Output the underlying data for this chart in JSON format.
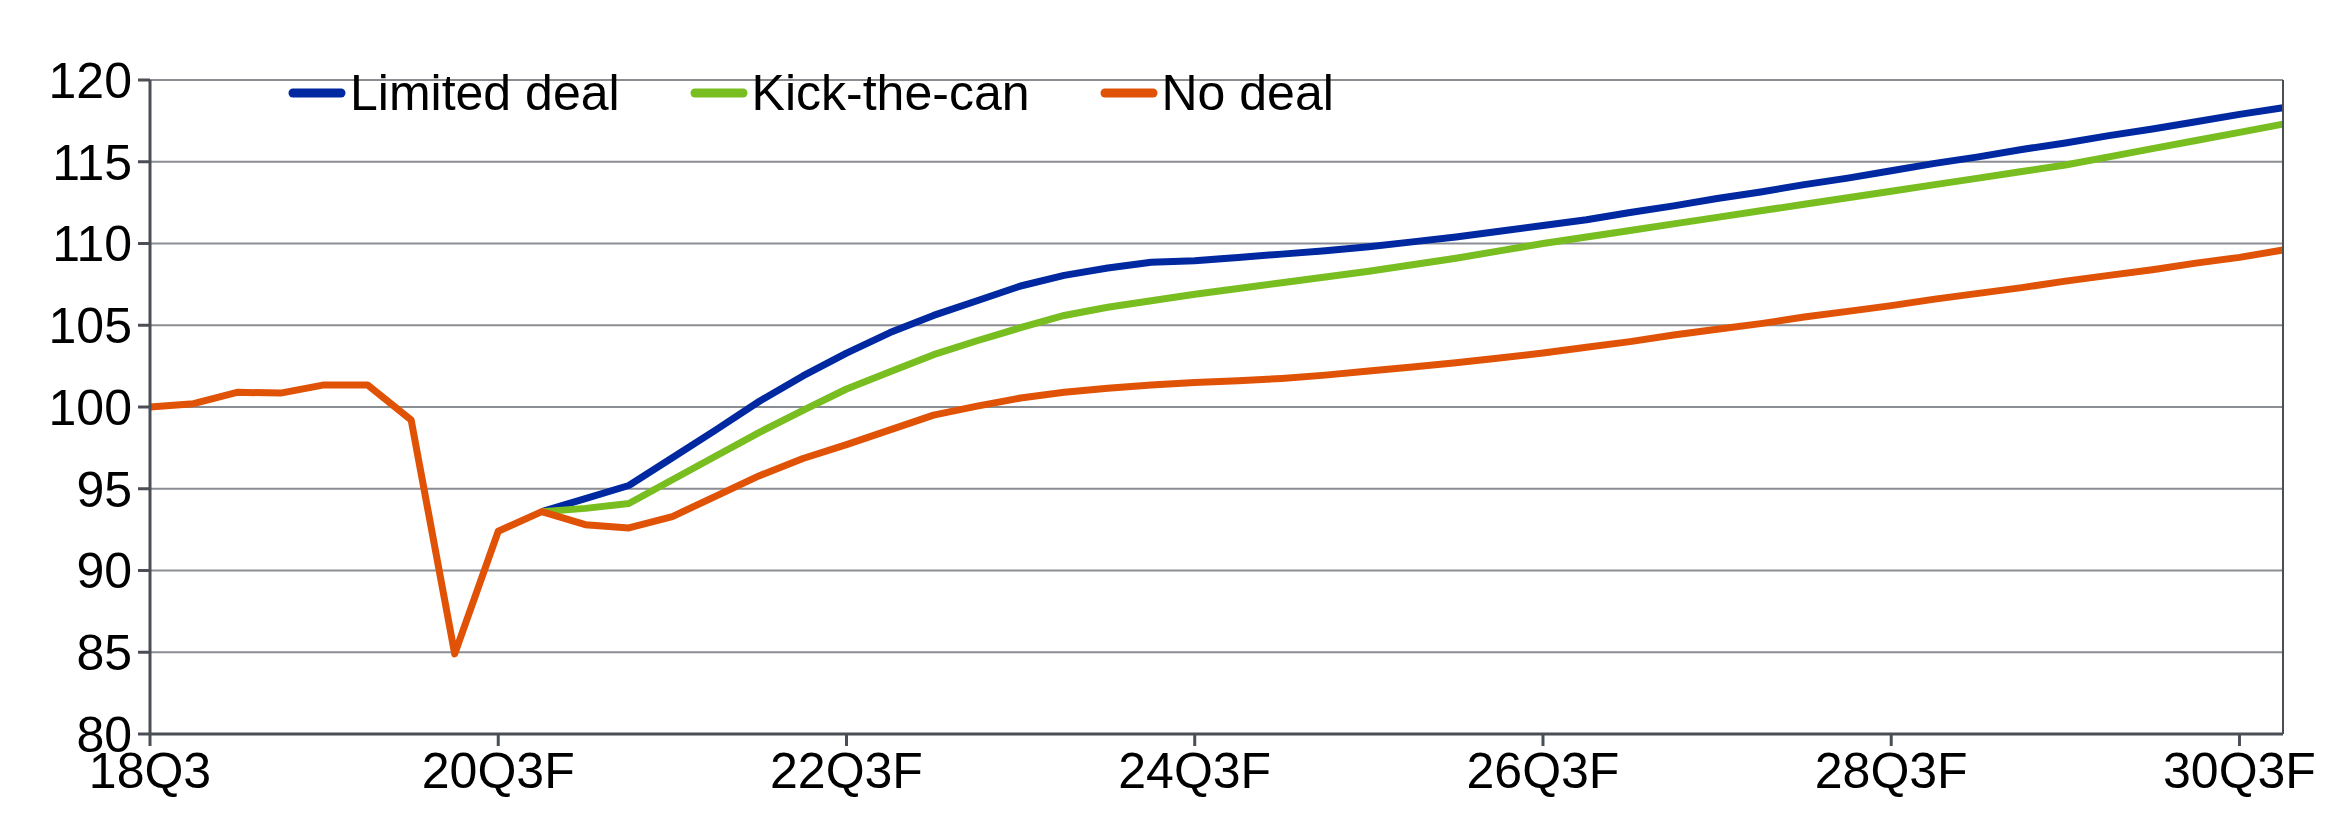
{
  "chart_data": {
    "type": "line",
    "categories": [
      "18Q3",
      null,
      null,
      null,
      null,
      null,
      null,
      null,
      "20Q3F",
      null,
      null,
      null,
      null,
      null,
      null,
      null,
      "22Q3F",
      null,
      null,
      null,
      null,
      null,
      null,
      null,
      "24Q3F",
      null,
      null,
      null,
      null,
      null,
      null,
      null,
      "26Q3F",
      null,
      null,
      null,
      null,
      null,
      null,
      null,
      "28Q3F",
      null,
      null,
      null,
      null,
      null,
      null,
      null,
      "30Q3F",
      null
    ],
    "series": [
      {
        "name": "Limited deal",
        "color": "#0028a0",
        "values": [
          null,
          null,
          null,
          null,
          null,
          null,
          null,
          null,
          null,
          93.6,
          94.4,
          95.2,
          96.9,
          98.6,
          100.35,
          101.9,
          103.3,
          104.55,
          105.6,
          106.5,
          107.4,
          108.05,
          108.5,
          108.85,
          108.95,
          109.15,
          109.35,
          109.55,
          109.8,
          110.1,
          110.4,
          110.75,
          111.1,
          111.45,
          111.9,
          112.3,
          112.75,
          113.15,
          113.6,
          114.0,
          114.45,
          114.9,
          115.3,
          115.75,
          116.15,
          116.6,
          117.0,
          117.45,
          117.9,
          118.3
        ]
      },
      {
        "name": "Kick-the-can",
        "color": "#78be20",
        "values": [
          null,
          null,
          null,
          null,
          null,
          null,
          null,
          null,
          null,
          93.6,
          93.8,
          94.1,
          95.55,
          97.0,
          98.45,
          99.8,
          101.1,
          102.15,
          103.2,
          104.05,
          104.85,
          105.6,
          106.1,
          106.5,
          106.9,
          107.25,
          107.6,
          107.95,
          108.3,
          108.7,
          109.1,
          109.55,
          110.0,
          110.4,
          110.8,
          111.2,
          111.6,
          112.0,
          112.4,
          112.8,
          113.2,
          113.6,
          114.0,
          114.4,
          114.8,
          115.3,
          115.8,
          116.3,
          116.8,
          117.3
        ]
      },
      {
        "name": "No deal",
        "color": "#e05206",
        "values": [
          100.0,
          100.2,
          100.9,
          100.85,
          101.35,
          101.35,
          99.2,
          84.9,
          92.4,
          93.6,
          92.8,
          92.6,
          93.3,
          94.55,
          95.8,
          96.85,
          97.7,
          98.6,
          99.5,
          100.05,
          100.55,
          100.9,
          101.15,
          101.35,
          101.5,
          101.6,
          101.75,
          101.95,
          102.2,
          102.45,
          102.7,
          103.0,
          103.3,
          103.65,
          104.0,
          104.4,
          104.75,
          105.1,
          105.5,
          105.85,
          106.2,
          106.6,
          106.95,
          107.3,
          107.7,
          108.05,
          108.4,
          108.8,
          109.15,
          109.6
        ]
      }
    ],
    "ylim": [
      80,
      120
    ],
    "yticks": [
      80,
      85,
      90,
      95,
      100,
      105,
      110,
      115,
      120
    ],
    "grid": "y",
    "legend": "top left",
    "marker": "none",
    "line_style": "solid"
  }
}
